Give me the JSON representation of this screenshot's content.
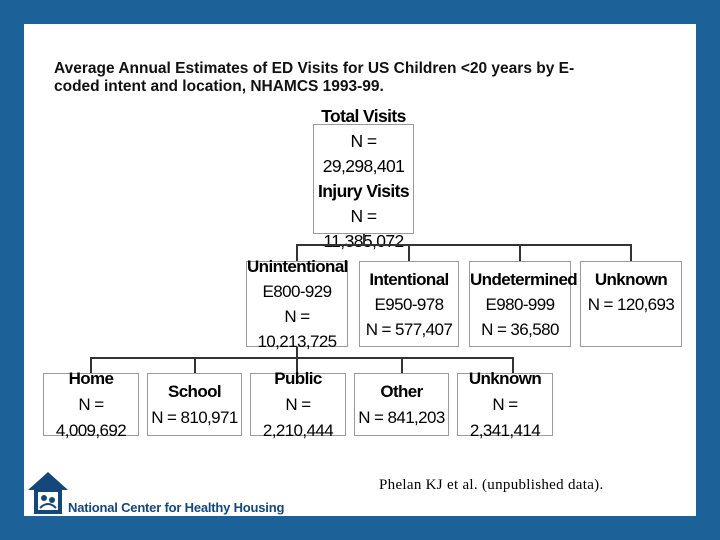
{
  "title": {
    "line1": "Average Annual Estimates of ED Visits for US Children <20 years by E-",
    "line2": "coded intent and location, NHAMCS 1993-99."
  },
  "root": {
    "line1": "Total Visits",
    "line2": "N = 29,298,401",
    "line3": "Injury Visits",
    "line4": "N = 11,385,072"
  },
  "intent": [
    {
      "label": "Unintentional",
      "code": "E800-929",
      "n": "N = 10,213,725"
    },
    {
      "label": "Intentional",
      "code": "E950-978",
      "n": "N = 577,407"
    },
    {
      "label": "Undetermined",
      "code": "E980-999",
      "n": "N = 36,580"
    },
    {
      "label": "Unknown",
      "n": "N = 120,693"
    }
  ],
  "location": [
    {
      "label": "Home",
      "n": "N = 4,009,692"
    },
    {
      "label": "School",
      "n": "N = 810,971"
    },
    {
      "label": "Public",
      "n": "N = 2,210,444"
    },
    {
      "label": "Other",
      "n": "N = 841,203"
    },
    {
      "label": "Unknown",
      "n": "N = 2,341,414"
    }
  ],
  "citation": "Phelan KJ et al. (unpublished data).",
  "org_name": "National Center for Healthy Housing",
  "colors": {
    "frame": "#1d6199",
    "logo": "#14477a"
  },
  "icons": {
    "logo": "house-logo-icon"
  }
}
